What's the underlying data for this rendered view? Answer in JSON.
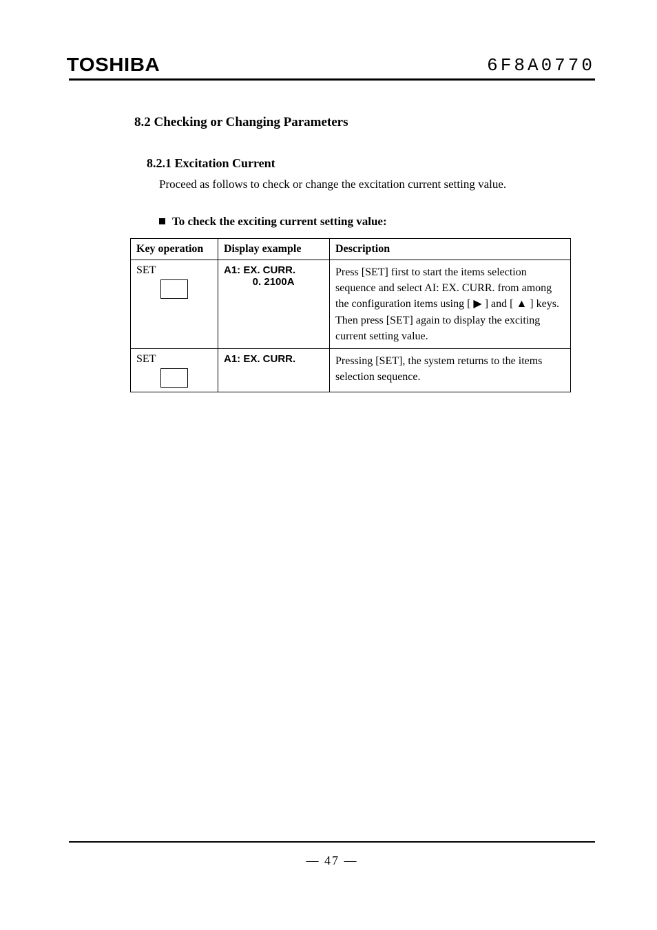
{
  "header": {
    "brand": "TOSHIBA",
    "doc_number": "6F8A0770"
  },
  "section": {
    "title": "8.2 Checking or Changing Parameters",
    "sub_title": "8.2.1 Excitation Current",
    "intro": "Proceed as follows to check or change the excitation current setting value.",
    "bullet": "To check the exciting current setting value:"
  },
  "table": {
    "columns": [
      "Key operation",
      "Display example",
      "Description"
    ],
    "rows": [
      {
        "key_label": "SET",
        "display": "A1: EX. CURR.\n          0. 2100A",
        "description": "Press [SET] first to start the items selection sequence and select AI: EX. CURR. from among the configuration items using [ ▶ ] and [ ▲ ] keys. Then press [SET] again to display the exciting current setting value."
      },
      {
        "key_label": "SET",
        "display": "A1: EX. CURR.",
        "description": "Pressing [SET], the system returns to the items selection sequence."
      }
    ]
  },
  "footer": {
    "page": "—   47   —"
  }
}
